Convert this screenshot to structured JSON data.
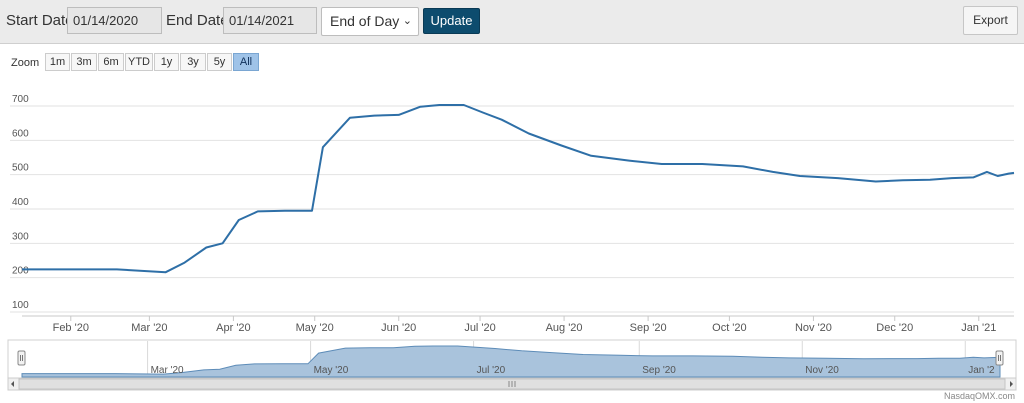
{
  "toolbar": {
    "start_label": "Start Date:",
    "start_value": "01/14/2020",
    "end_label": "End Date:",
    "end_value": "01/14/2021",
    "frequency": "End of Day",
    "update_label": "Update",
    "export_label": "Export"
  },
  "zoom": {
    "label": "Zoom",
    "buttons": [
      "1m",
      "3m",
      "6m",
      "YTD",
      "1y",
      "3y",
      "5y",
      "All"
    ],
    "active": "All"
  },
  "navigator": {
    "labels": [
      "Mar '20",
      "May '20",
      "Jul '20",
      "Sep '20",
      "Nov '20",
      "Jan '2"
    ]
  },
  "credit": "NasdaqOMX.com",
  "chart_data": {
    "type": "line",
    "title": "",
    "xlabel": "",
    "ylabel": "",
    "ylim": [
      100,
      700
    ],
    "yticks": [
      100,
      200,
      300,
      400,
      500,
      600,
      700
    ],
    "ytick_labels": [
      "100",
      "200",
      "300",
      "400",
      "500",
      "600",
      "700"
    ],
    "xlim": [
      "2020-01-14",
      "2021-01-14"
    ],
    "xticks": [
      {
        "date": "2020-02-01",
        "label": "Feb '20"
      },
      {
        "date": "2020-03-01",
        "label": "Mar '20"
      },
      {
        "date": "2020-04-01",
        "label": "Apr '20"
      },
      {
        "date": "2020-05-01",
        "label": "May '20"
      },
      {
        "date": "2020-06-01",
        "label": "Jun '20"
      },
      {
        "date": "2020-07-01",
        "label": "Jul '20"
      },
      {
        "date": "2020-08-01",
        "label": "Aug '20"
      },
      {
        "date": "2020-09-01",
        "label": "Sep '20"
      },
      {
        "date": "2020-10-01",
        "label": "Oct '20"
      },
      {
        "date": "2020-11-01",
        "label": "Nov '20"
      },
      {
        "date": "2020-12-01",
        "label": "Dec '20"
      },
      {
        "date": "2021-01-01",
        "label": "Jan '21"
      }
    ],
    "grid": true,
    "legend": "none",
    "series": [
      {
        "color": "#2e6fa7",
        "points": [
          [
            "2020-01-14",
            224
          ],
          [
            "2020-02-01",
            224
          ],
          [
            "2020-02-18",
            224
          ],
          [
            "2020-03-07",
            216
          ],
          [
            "2020-03-14",
            244
          ],
          [
            "2020-03-22",
            288
          ],
          [
            "2020-03-28",
            300
          ],
          [
            "2020-04-03",
            368
          ],
          [
            "2020-04-10",
            393
          ],
          [
            "2020-04-20",
            395
          ],
          [
            "2020-04-30",
            395
          ],
          [
            "2020-05-04",
            580
          ],
          [
            "2020-05-14",
            666
          ],
          [
            "2020-05-23",
            672
          ],
          [
            "2020-06-01",
            674
          ],
          [
            "2020-06-09",
            698
          ],
          [
            "2020-06-16",
            703
          ],
          [
            "2020-06-25",
            703
          ],
          [
            "2020-07-02",
            681
          ],
          [
            "2020-07-09",
            660
          ],
          [
            "2020-07-19",
            620
          ],
          [
            "2020-07-31",
            585
          ],
          [
            "2020-08-11",
            555
          ],
          [
            "2020-08-25",
            541
          ],
          [
            "2020-09-06",
            531
          ],
          [
            "2020-09-21",
            531
          ],
          [
            "2020-10-06",
            524
          ],
          [
            "2020-10-17",
            508
          ],
          [
            "2020-10-27",
            496
          ],
          [
            "2020-11-10",
            490
          ],
          [
            "2020-11-24",
            480
          ],
          [
            "2020-12-04",
            484
          ],
          [
            "2020-12-14",
            485
          ],
          [
            "2020-12-22",
            490
          ],
          [
            "2020-12-30",
            492
          ],
          [
            "2021-01-04",
            508
          ],
          [
            "2021-01-08",
            496
          ],
          [
            "2021-01-12",
            503
          ],
          [
            "2021-01-18",
            505
          ]
        ]
      }
    ]
  }
}
